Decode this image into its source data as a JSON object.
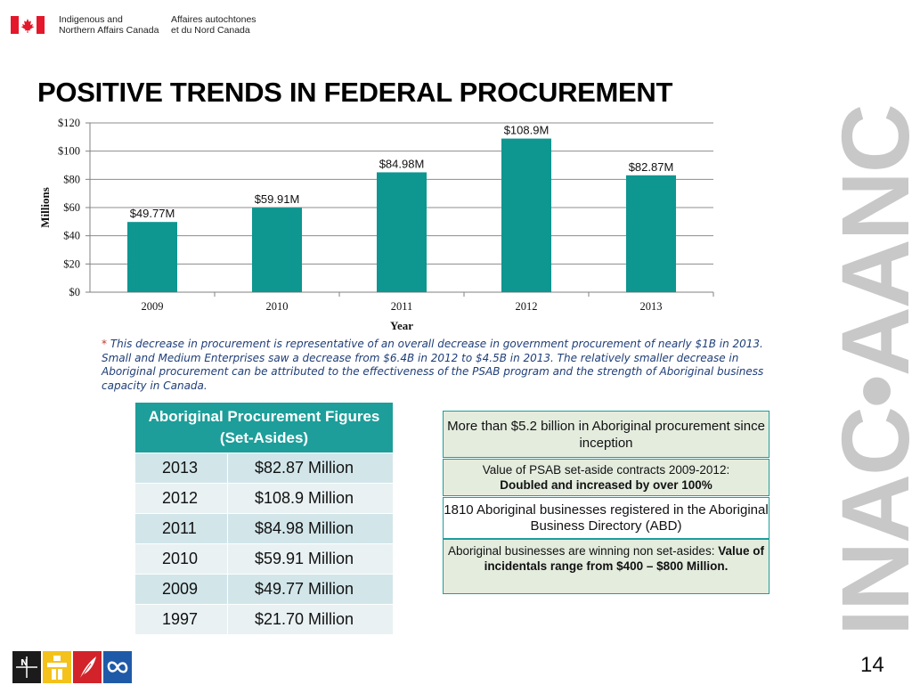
{
  "header": {
    "org_en_line1": "Indigenous and",
    "org_en_line2": "Northern Affairs Canada",
    "org_fr_line1": "Affaires autochtones",
    "org_fr_line2": "et du Nord Canada",
    "flag_color": "#e4172b"
  },
  "title": "POSITIVE TRENDS IN FEDERAL PROCUREMENT",
  "brand": "INAC•AANC",
  "chart_data": {
    "type": "bar",
    "title": "",
    "xlabel": "Year",
    "ylabel": "Millions",
    "categories": [
      "2009",
      "2010",
      "2011",
      "2012",
      "2013"
    ],
    "values": [
      49.77,
      59.91,
      84.98,
      108.9,
      82.87
    ],
    "data_labels": [
      "$49.77M",
      "$59.91M",
      "$84.98M",
      "$108.9M",
      "$82.87M"
    ],
    "ylim": [
      0,
      120
    ],
    "yticks": [
      0,
      20,
      40,
      60,
      80,
      100,
      120
    ],
    "ytick_labels": [
      "$0",
      "$20",
      "$40",
      "$60",
      "$80",
      "$100",
      "$120"
    ],
    "grid": true,
    "bar_color": "#0e9690"
  },
  "footnote": {
    "star": "*",
    "text": "This decrease in procurement is representative of an overall decrease in government procurement of nearly $1B  in 2013. Small and Medium Enterprises saw a decrease from $6.4B in 2012 to $4.5B in 2013. The relatively smaller decrease in Aboriginal procurement can be attributed to the effectiveness of the PSAB program and the strength of Aboriginal business capacity in Canada."
  },
  "table": {
    "header": "Aboriginal Procurement Figures (Set-Asides)",
    "rows": [
      {
        "year": "2013",
        "amount": "$82.87 Million"
      },
      {
        "year": "2012",
        "amount": "$108.9 Million"
      },
      {
        "year": "2011",
        "amount": "$84.98 Million"
      },
      {
        "year": "2010",
        "amount": "$59.91 Million"
      },
      {
        "year": "2009",
        "amount": "$49.77 Million"
      },
      {
        "year": "1997",
        "amount": "$21.70 Million"
      }
    ]
  },
  "info": {
    "box1": "More than $5.2 billion in Aboriginal procurement since inception",
    "box2_line1": "Value of PSAB set-aside contracts 2009-2012:",
    "box2_bold": "Doubled and increased by over 100%",
    "box3": "1810 Aboriginal businesses registered in the Aboriginal Business Directory (ABD)",
    "box4_normal": "Aboriginal businesses are winning non set-asides: ",
    "box4_bold": "Value of incidentals range from $400 – $800 Million."
  },
  "page_number": "14",
  "icons": [
    "north-compass-icon",
    "inukshuk-icon",
    "feather-icon",
    "infinity-icon"
  ]
}
